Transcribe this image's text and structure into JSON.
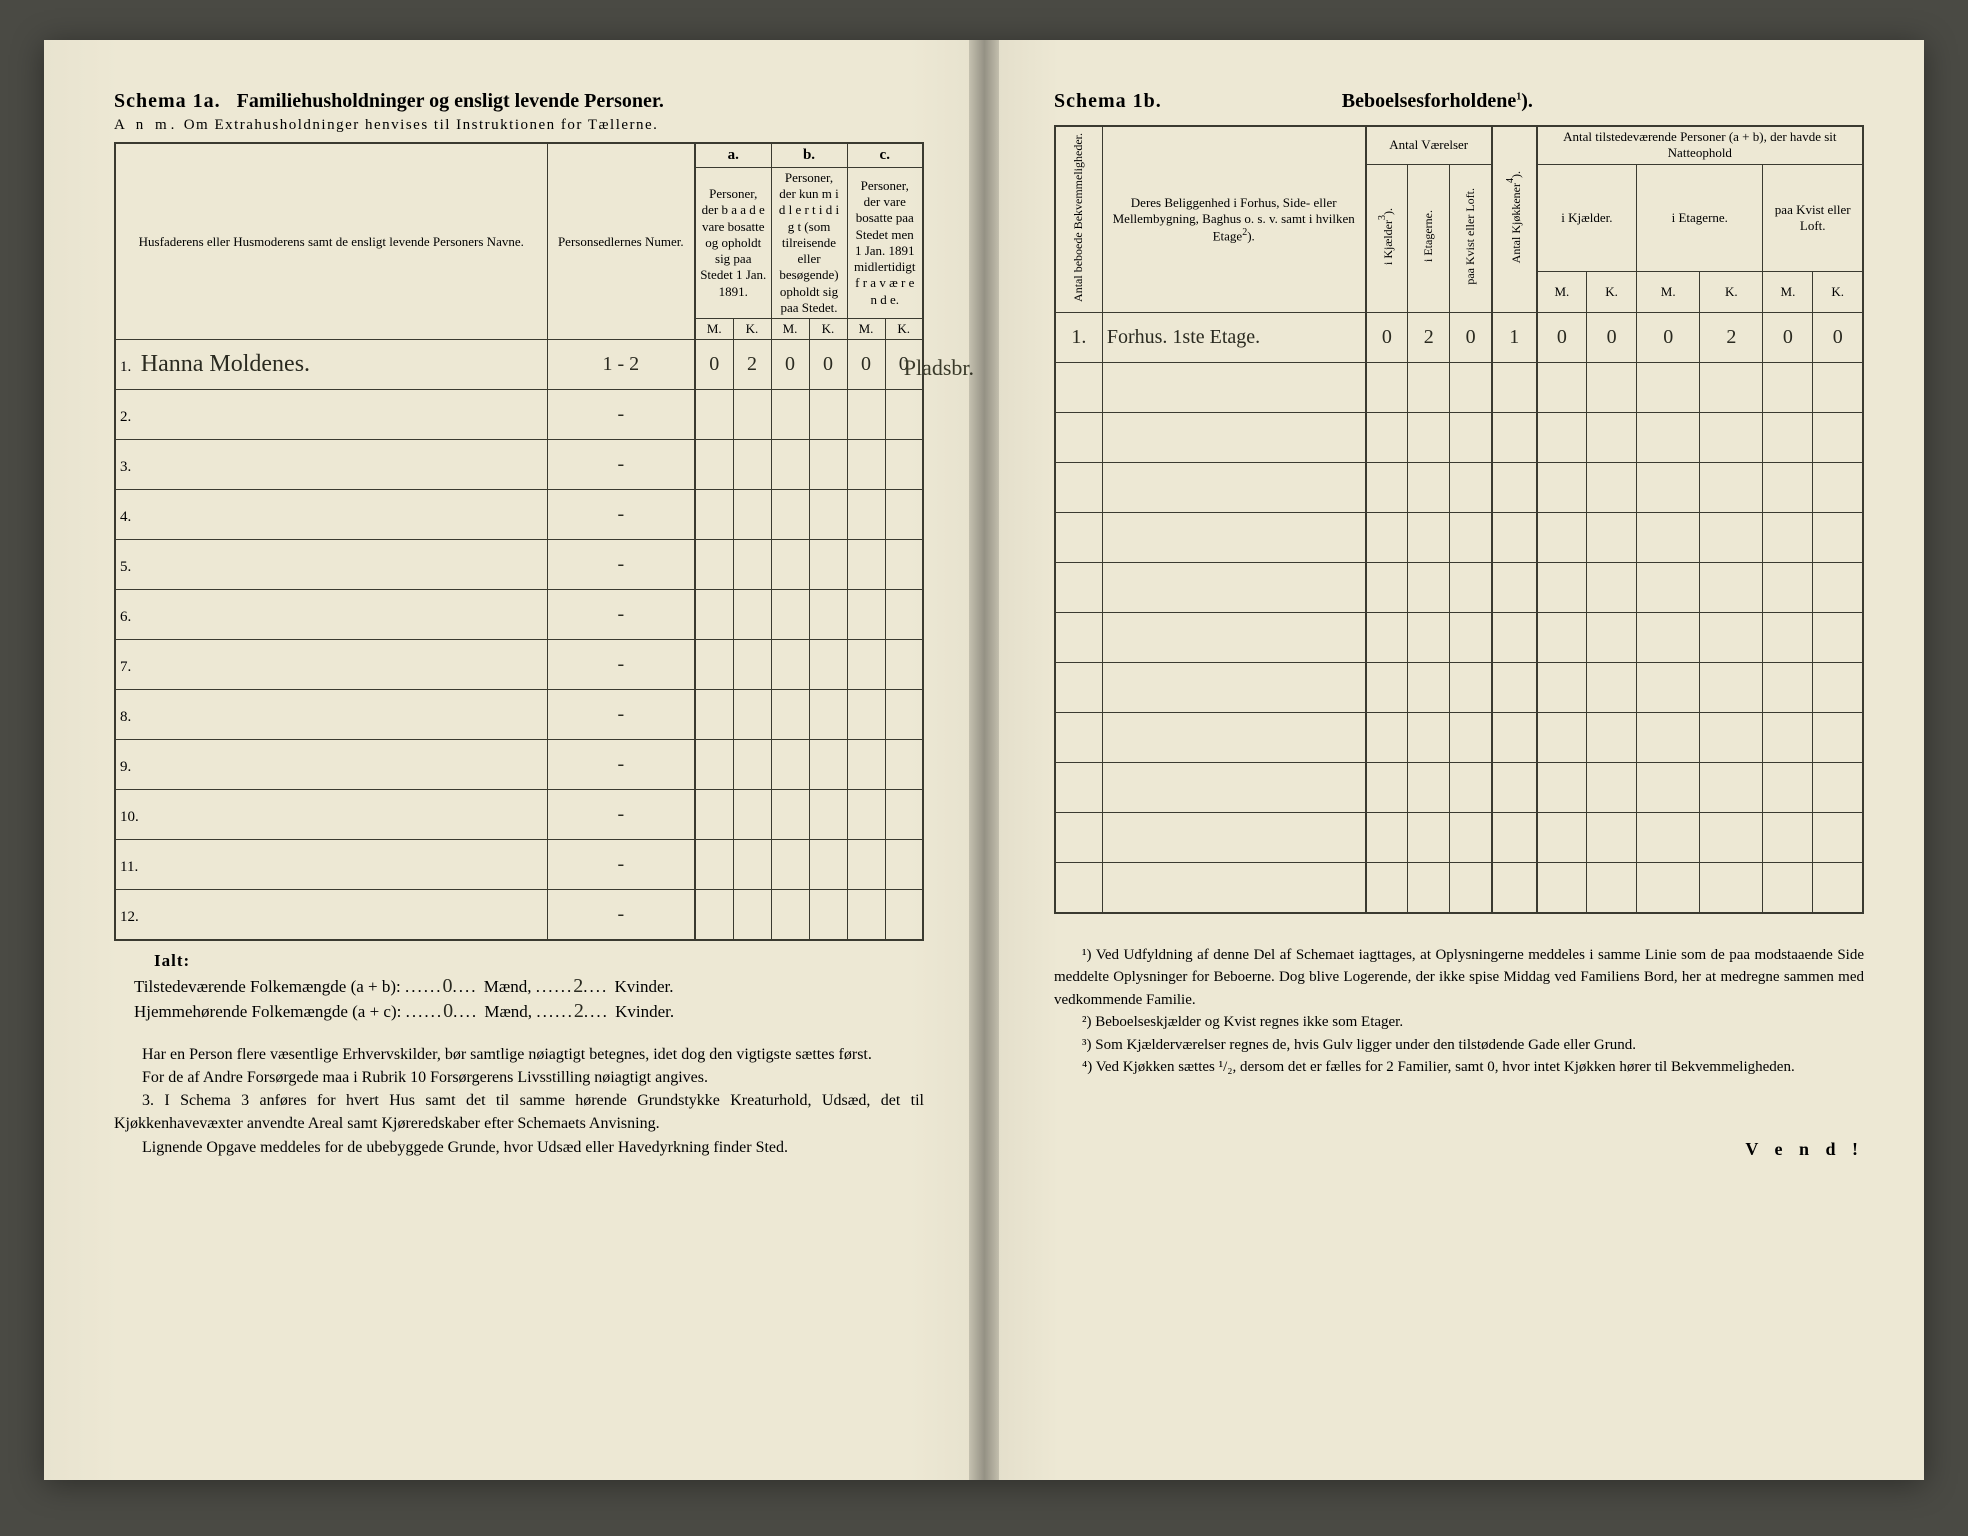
{
  "left": {
    "schema_label": "Schema 1a.",
    "schema_title": "Familiehusholdninger og ensligt levende Personer.",
    "anm_prefix": "A n m.",
    "anm_text": "Om Extrahusholdninger henvises til Instruktionen for Tællerne.",
    "headers": {
      "name": "Husfaderens eller Husmoderens samt de ensligt levende Personers Navne.",
      "numer": "Personsedlernes Numer.",
      "a_label": "a.",
      "a_text": "Personer, der b a a d e vare bosatte og opholdt sig paa Stedet 1 Jan. 1891.",
      "b_label": "b.",
      "b_text": "Personer, der kun m i d l e r t i d i g t (som tilreisende eller besøgende) opholdt sig paa Stedet.",
      "c_label": "c.",
      "c_text": "Personer, der vare bosatte paa Stedet men 1 Jan. 1891 midlertidigt f r a v æ r e n d e.",
      "m": "M.",
      "k": "K."
    },
    "rows": [
      {
        "n": "1.",
        "name": "Hanna Moldenes.",
        "numer": "1 - 2",
        "aM": "0",
        "aK": "2",
        "bM": "0",
        "bK": "0",
        "cM": "0",
        "cK": "0"
      },
      {
        "n": "2.",
        "name": "",
        "numer": "-",
        "aM": "",
        "aK": "",
        "bM": "",
        "bK": "",
        "cM": "",
        "cK": ""
      },
      {
        "n": "3.",
        "name": "",
        "numer": "-",
        "aM": "",
        "aK": "",
        "bM": "",
        "bK": "",
        "cM": "",
        "cK": ""
      },
      {
        "n": "4.",
        "name": "",
        "numer": "-",
        "aM": "",
        "aK": "",
        "bM": "",
        "bK": "",
        "cM": "",
        "cK": ""
      },
      {
        "n": "5.",
        "name": "",
        "numer": "-",
        "aM": "",
        "aK": "",
        "bM": "",
        "bK": "",
        "cM": "",
        "cK": ""
      },
      {
        "n": "6.",
        "name": "",
        "numer": "-",
        "aM": "",
        "aK": "",
        "bM": "",
        "bK": "",
        "cM": "",
        "cK": ""
      },
      {
        "n": "7.",
        "name": "",
        "numer": "-",
        "aM": "",
        "aK": "",
        "bM": "",
        "bK": "",
        "cM": "",
        "cK": ""
      },
      {
        "n": "8.",
        "name": "",
        "numer": "-",
        "aM": "",
        "aK": "",
        "bM": "",
        "bK": "",
        "cM": "",
        "cK": ""
      },
      {
        "n": "9.",
        "name": "",
        "numer": "-",
        "aM": "",
        "aK": "",
        "bM": "",
        "bK": "",
        "cM": "",
        "cK": ""
      },
      {
        "n": "10.",
        "name": "",
        "numer": "-",
        "aM": "",
        "aK": "",
        "bM": "",
        "bK": "",
        "cM": "",
        "cK": ""
      },
      {
        "n": "11.",
        "name": "",
        "numer": "-",
        "aM": "",
        "aK": "",
        "bM": "",
        "bK": "",
        "cM": "",
        "cK": ""
      },
      {
        "n": "12.",
        "name": "",
        "numer": "-",
        "aM": "",
        "aK": "",
        "bM": "",
        "bK": "",
        "cM": "",
        "cK": ""
      }
    ],
    "margin_note": "Pladsbr.",
    "ialt": "Ialt:",
    "sum1_label": "Tilstedeværende Folkemængde (a + b):",
    "sum1_m": "0",
    "sum1_k": "2",
    "sum2_label": "Hjemmehørende Folkemængde (a + c):",
    "sum2_m": "0",
    "sum2_k": "2",
    "maend": "Mænd,",
    "kvinder": "Kvinder.",
    "body": [
      "Har en Person flere væsentlige Erhvervskilder, bør samtlige nøiagtigt betegnes, idet dog den vigtigste sættes først.",
      "For de af Andre Forsørgede maa i Rubrik 10 Forsørgerens Livsstilling nøiagtigt angives.",
      "I Schema 3 anføres for hvert Hus samt det til samme hørende Grundstykke Kreaturhold, Udsæd, det til Kjøkkenhavevæxter anvendte Areal samt Kjøreredskaber efter Schemaets Anvisning.",
      "Lignende Opgave meddeles for de ubebyggede Grunde, hvor Udsæd eller Havedyrkning finder Sted."
    ],
    "body_prefix_3": "3."
  },
  "right": {
    "schema_label": "Schema 1b.",
    "schema_title": "Beboelsesforholdene",
    "headers": {
      "antal_bekv": "Antal beboede Bekvemmeligheder.",
      "belig": "Deres Beliggenhed i Forhus, Side- eller Mellembygning, Baghus o. s. v. samt i hvilken Etage",
      "antal_vaer": "Antal Værelser",
      "kjaelder": "i Kjælder",
      "etagerne": "i Etagerne.",
      "kvist": "paa Kvist eller Loft.",
      "kjokkener": "Antal Kjøkkener",
      "tilstede": "Antal tilstedeværende Personer (a + b), der havde sit Natteophold",
      "kjaelder2": "i Kjælder.",
      "etagerne2": "i Etagerne.",
      "kvist2": "paa Kvist eller Loft.",
      "m": "M.",
      "k": "K."
    },
    "rows": [
      {
        "n": "1.",
        "belig": "Forhus. 1ste Etage.",
        "kj": "0",
        "et": "2",
        "kv": "0",
        "kk": "1",
        "kjM": "0",
        "kjK": "0",
        "etM": "0",
        "etK": "2",
        "kvM": "0",
        "kvK": "0"
      },
      {
        "n": "",
        "belig": "",
        "kj": "",
        "et": "",
        "kv": "",
        "kk": "",
        "kjM": "",
        "kjK": "",
        "etM": "",
        "etK": "",
        "kvM": "",
        "kvK": ""
      },
      {
        "n": "",
        "belig": "",
        "kj": "",
        "et": "",
        "kv": "",
        "kk": "",
        "kjM": "",
        "kjK": "",
        "etM": "",
        "etK": "",
        "kvM": "",
        "kvK": ""
      },
      {
        "n": "",
        "belig": "",
        "kj": "",
        "et": "",
        "kv": "",
        "kk": "",
        "kjM": "",
        "kjK": "",
        "etM": "",
        "etK": "",
        "kvM": "",
        "kvK": ""
      },
      {
        "n": "",
        "belig": "",
        "kj": "",
        "et": "",
        "kv": "",
        "kk": "",
        "kjM": "",
        "kjK": "",
        "etM": "",
        "etK": "",
        "kvM": "",
        "kvK": ""
      },
      {
        "n": "",
        "belig": "",
        "kj": "",
        "et": "",
        "kv": "",
        "kk": "",
        "kjM": "",
        "kjK": "",
        "etM": "",
        "etK": "",
        "kvM": "",
        "kvK": ""
      },
      {
        "n": "",
        "belig": "",
        "kj": "",
        "et": "",
        "kv": "",
        "kk": "",
        "kjM": "",
        "kjK": "",
        "etM": "",
        "etK": "",
        "kvM": "",
        "kvK": ""
      },
      {
        "n": "",
        "belig": "",
        "kj": "",
        "et": "",
        "kv": "",
        "kk": "",
        "kjM": "",
        "kjK": "",
        "etM": "",
        "etK": "",
        "kvM": "",
        "kvK": ""
      },
      {
        "n": "",
        "belig": "",
        "kj": "",
        "et": "",
        "kv": "",
        "kk": "",
        "kjM": "",
        "kjK": "",
        "etM": "",
        "etK": "",
        "kvM": "",
        "kvK": ""
      },
      {
        "n": "",
        "belig": "",
        "kj": "",
        "et": "",
        "kv": "",
        "kk": "",
        "kjM": "",
        "kjK": "",
        "etM": "",
        "etK": "",
        "kvM": "",
        "kvK": ""
      },
      {
        "n": "",
        "belig": "",
        "kj": "",
        "et": "",
        "kv": "",
        "kk": "",
        "kjM": "",
        "kjK": "",
        "etM": "",
        "etK": "",
        "kvM": "",
        "kvK": ""
      },
      {
        "n": "",
        "belig": "",
        "kj": "",
        "et": "",
        "kv": "",
        "kk": "",
        "kjM": "",
        "kjK": "",
        "etM": "",
        "etK": "",
        "kvM": "",
        "kvK": ""
      }
    ],
    "footnotes": [
      "¹) Ved Udfyldning af denne Del af Schemaet iagttages, at Oplysningerne meddeles i samme Linie som de paa modstaaende Side meddelte Oplysninger for Beboerne. Dog blive Logerende, der ikke spise Middag ved Familiens Bord, her at medregne sammen med vedkommende Familie.",
      "²) Beboelseskjælder og Kvist regnes ikke som Etager.",
      "³) Som Kjælderværelser regnes de, hvis Gulv ligger under den tilstødende Gade eller Grund.",
      "⁴) Ved Kjøkken sættes ¹/₂, dersom det er fælles for 2 Familier, samt 0, hvor intet Kjøkken hører til Bekvemmeligheden."
    ],
    "vend": "V e n d !"
  }
}
